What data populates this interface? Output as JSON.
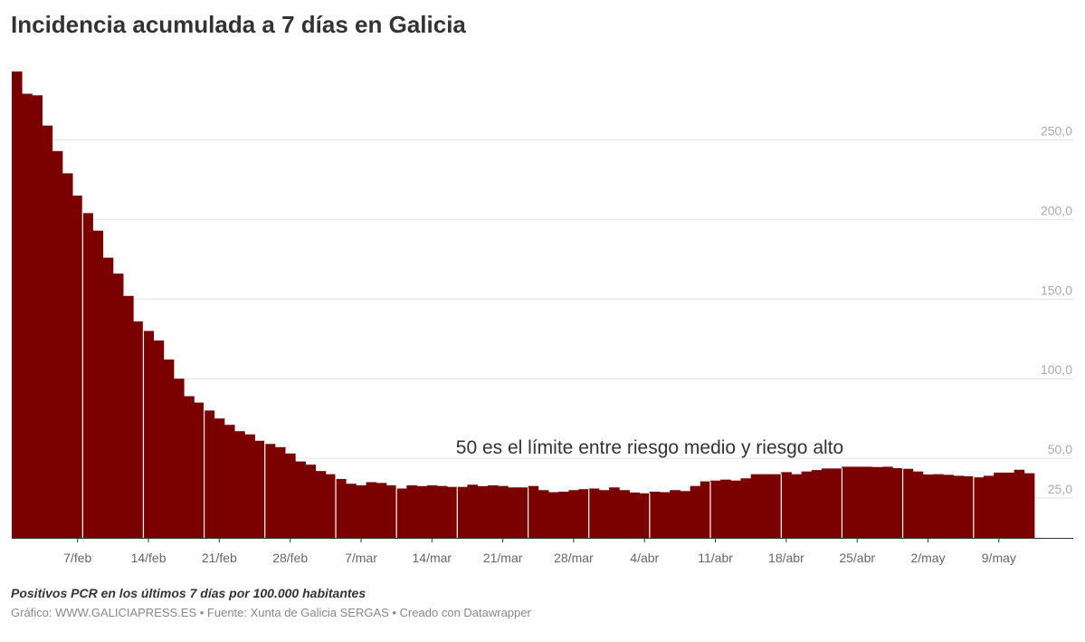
{
  "chart_data": {
    "type": "bar",
    "title": "Incidencia acumulada a 7 días en Galicia",
    "xlabel": "",
    "ylabel": "",
    "ylim": [
      0,
      295
    ],
    "grid": true,
    "start_date": "1/feb",
    "y_ticks": [
      25,
      50,
      100,
      150,
      200,
      250
    ],
    "y_tick_labels": [
      "25,0",
      "50,0",
      "100,0",
      "150,0",
      "200,0",
      "250,0"
    ],
    "x_tick_labels": [
      "7/feb",
      "14/feb",
      "21/feb",
      "28/feb",
      "7/mar",
      "14/mar",
      "21/mar",
      "28/mar",
      "4/abr",
      "11/abr",
      "18/abr",
      "25/abr",
      "2/may",
      "9/may"
    ],
    "x_tick_day_index": [
      6,
      13,
      20,
      27,
      34,
      41,
      48,
      55,
      62,
      69,
      76,
      83,
      90,
      97
    ],
    "values": [
      293,
      279,
      278,
      259,
      243,
      229,
      215,
      204,
      193,
      176,
      166,
      152,
      136,
      130,
      124,
      112,
      100,
      89,
      85,
      80,
      75,
      71,
      67,
      65,
      61,
      59,
      57,
      53,
      48,
      46,
      42,
      40,
      37,
      34,
      33,
      35,
      34.5,
      33,
      31,
      33,
      32.5,
      33,
      32.6,
      32,
      32,
      33.4,
      32.5,
      33,
      32.6,
      31.7,
      31.7,
      32.6,
      30,
      28.7,
      29,
      30,
      30.6,
      31,
      30,
      31.7,
      30,
      28.5,
      28,
      29,
      28.7,
      30,
      29.4,
      32.6,
      35.5,
      36,
      36.6,
      36,
      37.4,
      40,
      40,
      40,
      41.3,
      40,
      41.7,
      42.6,
      43.6,
      43.6,
      44.7,
      44.7,
      44.7,
      44.5,
      44.7,
      43.8,
      43.4,
      41.7,
      39.8,
      40,
      39.6,
      39,
      38.7,
      38,
      39,
      41,
      41,
      42.8,
      40.6
    ],
    "annotation": "50 es el límite entre riesgo medio y riesgo alto",
    "bar_color": "#7b0000"
  },
  "notes": "Positivos PCR en los últimos 7 días por 100.000 habitantes",
  "byline": "Gráfico: WWW.GALICIAPRESS.ES • Fuente: Xunta de Galicia SERGAS • Creado con Datawrapper"
}
